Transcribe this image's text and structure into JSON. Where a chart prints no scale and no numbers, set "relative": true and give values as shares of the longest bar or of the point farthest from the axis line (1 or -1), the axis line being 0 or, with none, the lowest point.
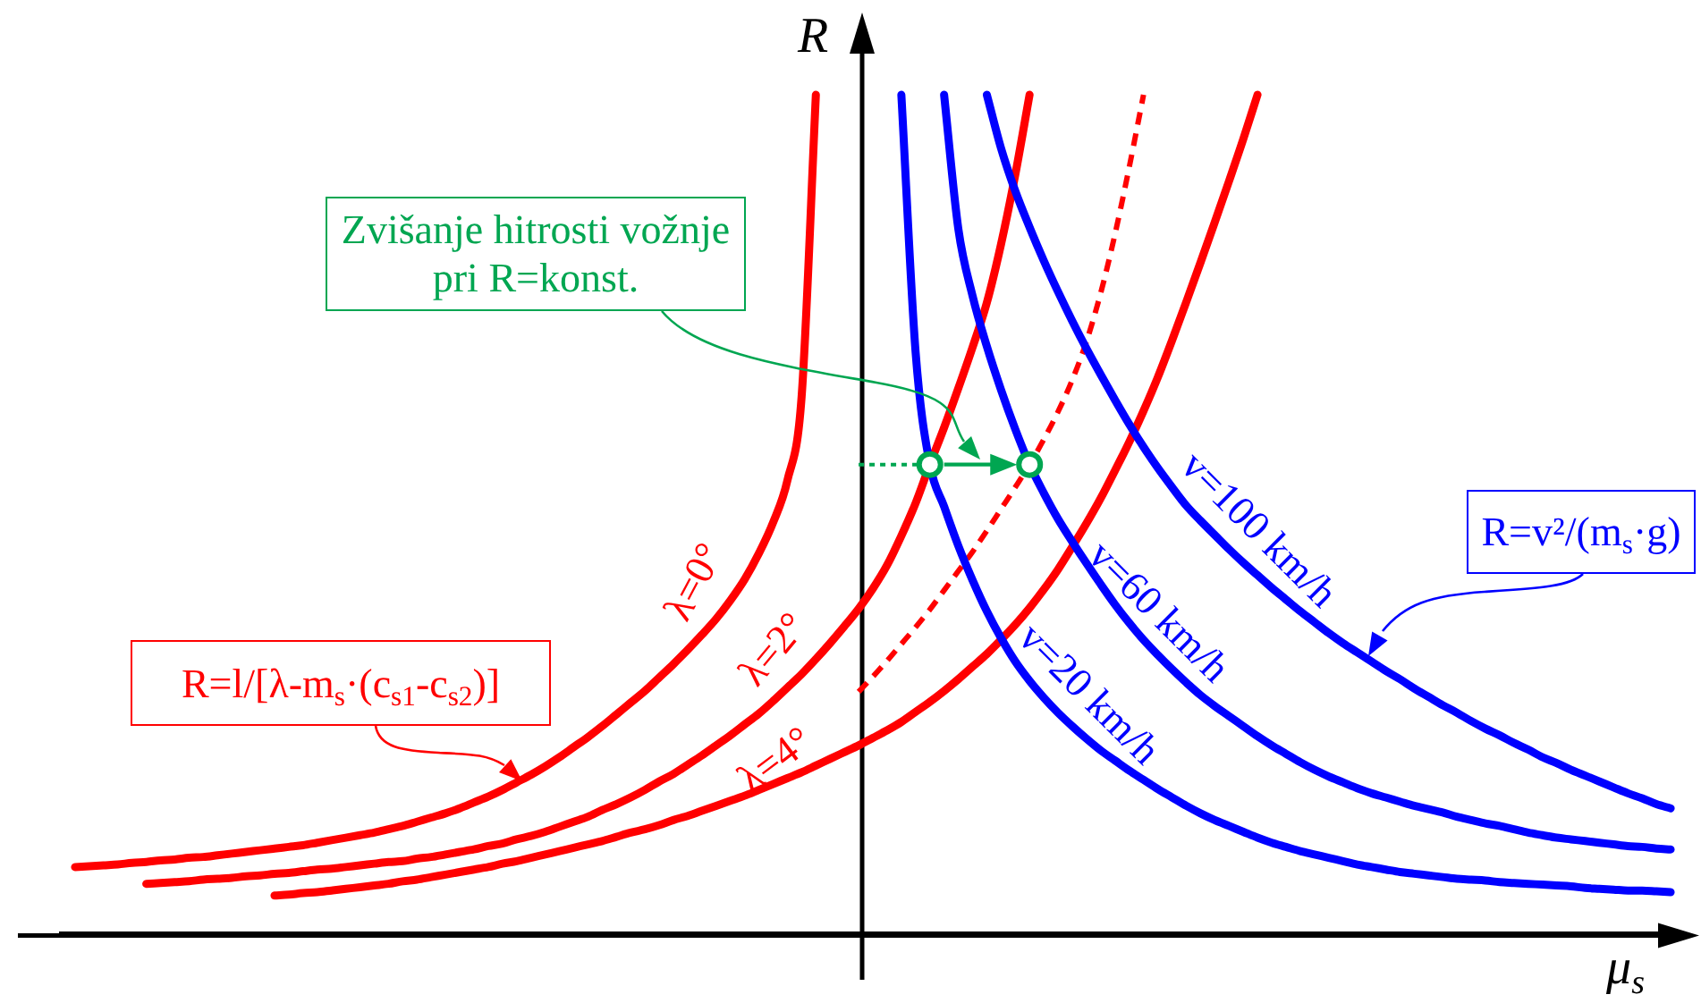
{
  "chart_data": {
    "type": "line",
    "relative": true,
    "xlabel": "μ$_{s}$",
    "ylabel": "R",
    "annotations": [
      "Zvišanje hitrosti vožnje\npri R=konst.",
      "R=v²/(m$_{s}$·g)",
      "R=l/[λ-m$_{s}$·(c$_{s1}$-c$_{s2}$)]"
    ],
    "categories": [
      null,
      null,
      null,
      null,
      null,
      null,
      null,
      null,
      null,
      null,
      null,
      null,
      null,
      null,
      null,
      null,
      null,
      null,
      null,
      null,
      null,
      null,
      null,
      null,
      null,
      null,
      null,
      null,
      null,
      null,
      null,
      null,
      null,
      null,
      null,
      null,
      null,
      null,
      null,
      null,
      null,
      null,
      null,
      null,
      null,
      null,
      null,
      null,
      null,
      null,
      null,
      null,
      null,
      null,
      null,
      null,
      null,
      null,
      null,
      null,
      null,
      null,
      null,
      null,
      null,
      null,
      null,
      null,
      null,
      null,
      null,
      null,
      null,
      null,
      null,
      null,
      null,
      null,
      null,
      null,
      null,
      null,
      null,
      null,
      null,
      null,
      null,
      null,
      null,
      null,
      null,
      null,
      null,
      null,
      null,
      null,
      null,
      null,
      null,
      null,
      null,
      null,
      null,
      null,
      null,
      null,
      null,
      null,
      null,
      null,
      null,
      null,
      null,
      null,
      null
    ],
    "series": [
      {
        "name": "λ=0°",
        "color": "#ff0000",
        "values": [
          null,
          0.079,
          0.08,
          0.081,
          0.082,
          0.084,
          0.085,
          0.087,
          0.088,
          0.09,
          0.091,
          0.093,
          0.095,
          0.097,
          0.099,
          0.101,
          0.103,
          0.105,
          0.108,
          0.111,
          0.114,
          0.117,
          0.12,
          0.124,
          0.128,
          0.133,
          0.138,
          0.143,
          0.149,
          0.156,
          0.163,
          0.171,
          0.18,
          0.189,
          0.199,
          0.21,
          0.222,
          0.234,
          0.247,
          0.261,
          0.275,
          0.289,
          0.305,
          0.321,
          0.338,
          0.356,
          0.375,
          0.397,
          0.422,
          0.453,
          0.49,
          0.54,
          0.64,
          1,
          null,
          null,
          null,
          null,
          null,
          null,
          null,
          null,
          null,
          null,
          null,
          null,
          null,
          null,
          null,
          null,
          null,
          null,
          null,
          null,
          null,
          null,
          null,
          null,
          null,
          null,
          null,
          null,
          null,
          null,
          null,
          null,
          null,
          null,
          null,
          null,
          null,
          null,
          null,
          null,
          null,
          null,
          null,
          null,
          null,
          null,
          null,
          null,
          null,
          null,
          null,
          null,
          null,
          null,
          null,
          null,
          null,
          null,
          null,
          null,
          null
        ]
      },
      {
        "name": "λ=2°",
        "color": "#ff0000",
        "values": [
          null,
          null,
          null,
          null,
          null,
          null,
          0.059,
          0.06,
          0.061,
          0.062,
          0.064,
          0.065,
          0.066,
          0.068,
          0.069,
          0.071,
          0.072,
          0.074,
          0.076,
          0.077,
          0.079,
          0.081,
          0.083,
          0.085,
          0.086,
          0.089,
          0.091,
          0.094,
          0.097,
          0.1,
          0.104,
          0.107,
          0.112,
          0.116,
          0.121,
          0.127,
          0.133,
          0.139,
          0.147,
          0.154,
          0.162,
          0.171,
          0.181,
          0.19,
          0.201,
          0.212,
          0.224,
          0.236,
          0.249,
          0.262,
          0.277,
          0.293,
          0.309,
          0.327,
          0.346,
          0.366,
          0.387,
          0.411,
          0.439,
          0.474,
          0.513,
          0.559,
          0.603,
          0.65,
          0.699,
          0.752,
          0.822,
          0.905,
          1,
          null,
          null,
          null,
          null,
          null,
          null,
          null,
          null,
          null,
          null,
          null,
          null,
          null,
          null,
          null,
          null,
          null,
          null,
          null,
          null,
          null,
          null,
          null,
          null,
          null,
          null,
          null,
          null,
          null,
          null,
          null,
          null,
          null,
          null,
          null,
          null,
          null,
          null,
          null,
          null,
          null,
          null,
          null,
          null,
          null,
          null
        ]
      },
      {
        "name": "λ=4°",
        "color": "#ff0000",
        "values": [
          null,
          null,
          null,
          null,
          null,
          null,
          null,
          null,
          null,
          null,
          null,
          null,
          null,
          null,
          null,
          0.045,
          0.046,
          0.048,
          0.049,
          0.051,
          0.053,
          0.055,
          0.057,
          0.059,
          0.062,
          0.064,
          0.067,
          0.07,
          0.073,
          0.076,
          0.079,
          0.083,
          0.086,
          0.09,
          0.094,
          0.098,
          0.102,
          0.106,
          0.11,
          0.115,
          0.12,
          0.124,
          0.129,
          0.135,
          0.14,
          0.146,
          0.152,
          0.158,
          0.164,
          0.171,
          0.178,
          0.185,
          0.192,
          0.2,
          0.208,
          0.216,
          0.224,
          0.233,
          0.242,
          0.252,
          0.264,
          0.276,
          0.289,
          0.303,
          0.318,
          0.333,
          0.35,
          0.368,
          0.388,
          0.41,
          0.434,
          0.461,
          0.489,
          0.519,
          0.552,
          0.586,
          0.623,
          0.663,
          0.707,
          0.753,
          0.8,
          0.848,
          0.897,
          0.947,
          1,
          null,
          null,
          null,
          null,
          null,
          null,
          null,
          null,
          null,
          null,
          null,
          null,
          null,
          null,
          null,
          null,
          null,
          null,
          null,
          null,
          null,
          null,
          null,
          null,
          null,
          null,
          null,
          null,
          null,
          null
        ]
      },
      {
        "color": "#ff0000",
        "line_style": "dashed",
        "values": [
          null,
          null,
          null,
          null,
          null,
          null,
          null,
          null,
          null,
          null,
          null,
          null,
          null,
          null,
          null,
          null,
          null,
          null,
          null,
          null,
          null,
          null,
          null,
          null,
          null,
          null,
          null,
          null,
          null,
          null,
          null,
          null,
          null,
          null,
          null,
          null,
          null,
          null,
          null,
          null,
          null,
          null,
          null,
          null,
          null,
          null,
          null,
          null,
          null,
          null,
          null,
          null,
          null,
          null,
          null,
          null,
          0.288,
          0.306,
          0.325,
          0.345,
          0.365,
          0.386,
          0.409,
          0.432,
          0.455,
          0.48,
          0.506,
          0.532,
          0.559,
          0.589,
          0.622,
          0.66,
          0.706,
          0.764,
          0.834,
          0.914,
          1,
          null,
          null,
          null,
          null,
          null,
          null,
          null,
          null,
          null,
          null,
          null,
          null,
          null,
          null,
          null,
          null,
          null,
          null,
          null,
          null,
          null,
          null,
          null,
          null,
          null,
          null,
          null,
          null,
          null,
          null,
          null,
          null,
          null,
          null,
          null,
          null,
          null,
          null
        ]
      },
      {
        "name": "v=20 km/h",
        "color": "#0000ff",
        "values": [
          null,
          null,
          null,
          null,
          null,
          null,
          null,
          null,
          null,
          null,
          null,
          null,
          null,
          null,
          null,
          null,
          null,
          null,
          null,
          null,
          null,
          null,
          null,
          null,
          null,
          null,
          null,
          null,
          null,
          null,
          null,
          null,
          null,
          null,
          null,
          null,
          null,
          null,
          null,
          null,
          null,
          null,
          null,
          null,
          null,
          null,
          null,
          null,
          null,
          null,
          null,
          null,
          null,
          null,
          null,
          null,
          null,
          null,
          null,
          1,
          0.693,
          0.559,
          0.509,
          0.462,
          0.421,
          0.384,
          0.352,
          0.324,
          0.301,
          0.281,
          0.263,
          0.247,
          0.232,
          0.218,
          0.206,
          0.194,
          0.183,
          0.172,
          0.162,
          0.152,
          0.143,
          0.135,
          0.128,
          0.121,
          0.114,
          0.108,
          0.103,
          0.098,
          0.094,
          0.09,
          0.086,
          0.082,
          0.079,
          0.076,
          0.073,
          0.071,
          0.069,
          0.067,
          0.065,
          0.064,
          0.063,
          0.061,
          0.06,
          0.059,
          0.058,
          0.057,
          0.056,
          0.054,
          0.053,
          0.052,
          0.051,
          0.051,
          0.05,
          0.049,
          null
        ]
      },
      {
        "name": "v=60 km/h",
        "color": "#0000ff",
        "values": [
          null,
          null,
          null,
          null,
          null,
          null,
          null,
          null,
          null,
          null,
          null,
          null,
          null,
          null,
          null,
          null,
          null,
          null,
          null,
          null,
          null,
          null,
          null,
          null,
          null,
          null,
          null,
          null,
          null,
          null,
          null,
          null,
          null,
          null,
          null,
          null,
          null,
          null,
          null,
          null,
          null,
          null,
          null,
          null,
          null,
          null,
          null,
          null,
          null,
          null,
          null,
          null,
          null,
          null,
          null,
          null,
          null,
          null,
          null,
          null,
          null,
          null,
          1,
          0.84,
          0.76,
          0.7,
          0.648,
          0.601,
          0.559,
          0.525,
          0.494,
          0.467,
          0.441,
          0.416,
          0.392,
          0.37,
          0.35,
          0.332,
          0.315,
          0.299,
          0.284,
          0.271,
          0.259,
          0.247,
          0.235,
          0.224,
          0.214,
          0.204,
          0.195,
          0.187,
          0.18,
          0.173,
          0.167,
          0.162,
          0.157,
          0.152,
          0.148,
          0.144,
          0.139,
          0.135,
          0.131,
          0.128,
          0.124,
          0.12,
          0.117,
          0.114,
          0.112,
          0.11,
          0.108,
          0.106,
          0.104,
          0.103,
          0.101,
          0.1,
          null
        ]
      },
      {
        "name": "v=100 km/h",
        "color": "#0000ff",
        "values": [
          null,
          null,
          null,
          null,
          null,
          null,
          null,
          null,
          null,
          null,
          null,
          null,
          null,
          null,
          null,
          null,
          null,
          null,
          null,
          null,
          null,
          null,
          null,
          null,
          null,
          null,
          null,
          null,
          null,
          null,
          null,
          null,
          null,
          null,
          null,
          null,
          null,
          null,
          null,
          null,
          null,
          null,
          null,
          null,
          null,
          null,
          null,
          null,
          null,
          null,
          null,
          null,
          null,
          null,
          null,
          null,
          null,
          null,
          null,
          null,
          null,
          null,
          null,
          null,
          null,
          1,
          0.936,
          0.885,
          0.842,
          0.802,
          0.765,
          0.73,
          0.697,
          0.666,
          0.636,
          0.607,
          0.58,
          0.555,
          0.532,
          0.51,
          0.492,
          0.475,
          0.458,
          0.442,
          0.427,
          0.412,
          0.398,
          0.384,
          0.371,
          0.358,
          0.346,
          0.335,
          0.324,
          0.313,
          0.303,
          0.292,
          0.282,
          0.272,
          0.263,
          0.253,
          0.244,
          0.236,
          0.227,
          0.219,
          0.21,
          0.203,
          0.195,
          0.188,
          0.181,
          0.174,
          0.167,
          0.161,
          0.154,
          0.149,
          null
        ]
      },
      {
        "color": "#00a651",
        "line_style": "dotted",
        "values": [
          null,
          null,
          null,
          null,
          null,
          null,
          null,
          null,
          null,
          null,
          null,
          null,
          null,
          null,
          null,
          null,
          null,
          null,
          null,
          null,
          null,
          null,
          null,
          null,
          null,
          null,
          null,
          null,
          null,
          null,
          null,
          null,
          null,
          null,
          null,
          null,
          null,
          null,
          null,
          null,
          null,
          null,
          null,
          null,
          null,
          null,
          null,
          null,
          null,
          null,
          null,
          null,
          null,
          null,
          null,
          null,
          0.559,
          0.559,
          0.559,
          0.559,
          0.559,
          0.559,
          null,
          null,
          null,
          null,
          null,
          null,
          null,
          null,
          null,
          null,
          null,
          null,
          null,
          null,
          null,
          null,
          null,
          null,
          null,
          null,
          null,
          null,
          null,
          null,
          null,
          null,
          null,
          null,
          null,
          null,
          null,
          null,
          null,
          null,
          null,
          null,
          null,
          null,
          null,
          null,
          null,
          null,
          null,
          null,
          null,
          null,
          null,
          null,
          null,
          null,
          null,
          null,
          null
        ]
      },
      {
        "color": "#00a651",
        "marker": "circle",
        "values": [
          null,
          null,
          null,
          null,
          null,
          null,
          null,
          null,
          null,
          null,
          null,
          null,
          null,
          null,
          null,
          null,
          null,
          null,
          null,
          null,
          null,
          null,
          null,
          null,
          null,
          null,
          null,
          null,
          null,
          null,
          null,
          null,
          null,
          null,
          null,
          null,
          null,
          null,
          null,
          null,
          null,
          null,
          null,
          null,
          null,
          null,
          null,
          null,
          null,
          null,
          null,
          null,
          null,
          null,
          null,
          null,
          null,
          null,
          null,
          null,
          null,
          0.559,
          null,
          null,
          null,
          null,
          null,
          null,
          0.559,
          null,
          null,
          null,
          null,
          null,
          null,
          null,
          null,
          null,
          null,
          null,
          null,
          null,
          null,
          null,
          null,
          null,
          null,
          null,
          null,
          null,
          null,
          null,
          null,
          null,
          null,
          null,
          null,
          null,
          null,
          null,
          null,
          null,
          null,
          null,
          null,
          null,
          null,
          null,
          null,
          null,
          null,
          null,
          null,
          null,
          null
        ]
      }
    ]
  }
}
